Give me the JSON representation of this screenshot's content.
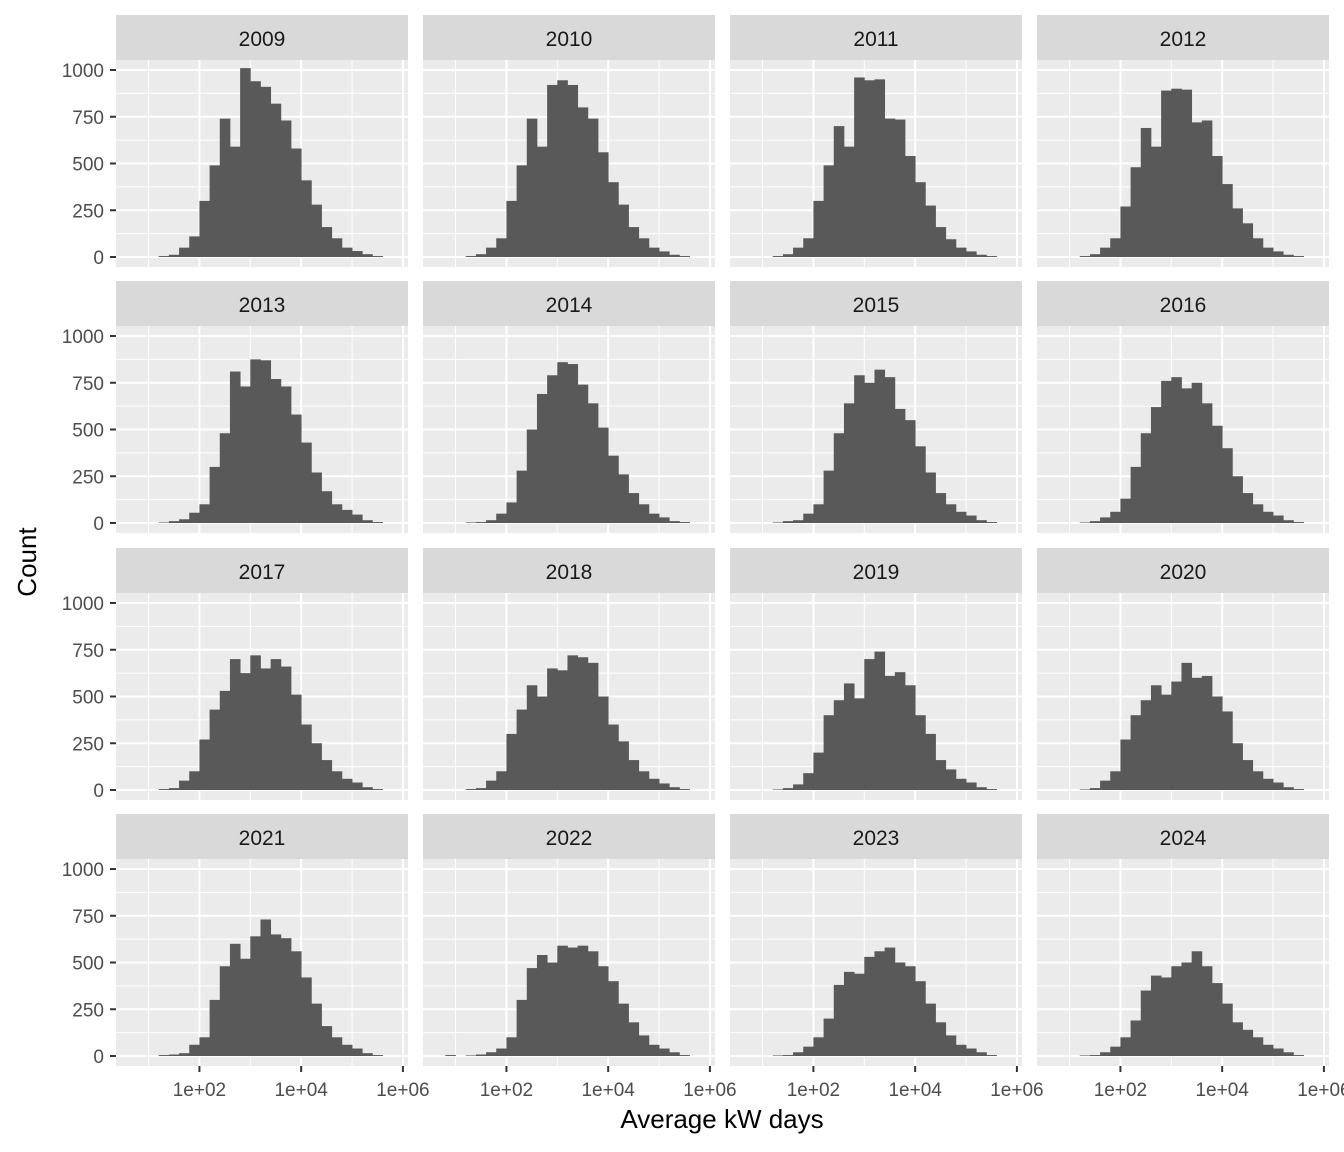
{
  "chart_data": {
    "type": "bar",
    "subtype": "faceted-histogram",
    "title": "",
    "xlabel": "Average kW days",
    "ylabel": "Count",
    "x_scale": "log10",
    "x_ticks": [
      "1e+02",
      "1e+04",
      "1e+06"
    ],
    "y_ticks": [
      "0",
      "250",
      "500",
      "750",
      "1000"
    ],
    "ylim": [
      0,
      1000
    ],
    "grid": true,
    "colors": {
      "bar": "#595959",
      "panel": "#ebebeb",
      "strip": "#d9d9d9",
      "grid": "#ffffff"
    },
    "bin_log10_start": 0.8,
    "bin_log10_width": 0.2,
    "facets": [
      {
        "label": "2009",
        "counts": [
          0,
          0,
          5,
          12,
          50,
          110,
          300,
          490,
          740,
          590,
          1010,
          940,
          910,
          820,
          730,
          580,
          410,
          280,
          160,
          100,
          50,
          32,
          15,
          5
        ]
      },
      {
        "label": "2010",
        "counts": [
          0,
          0,
          5,
          15,
          50,
          100,
          300,
          490,
          740,
          590,
          920,
          945,
          920,
          800,
          740,
          560,
          400,
          280,
          160,
          100,
          50,
          30,
          12,
          5
        ]
      },
      {
        "label": "2011",
        "counts": [
          0,
          0,
          5,
          15,
          50,
          100,
          300,
          490,
          700,
          590,
          960,
          945,
          950,
          740,
          735,
          540,
          400,
          275,
          160,
          95,
          50,
          30,
          12,
          5
        ]
      },
      {
        "label": "2012",
        "counts": [
          0,
          0,
          5,
          15,
          50,
          100,
          270,
          480,
          690,
          590,
          890,
          900,
          895,
          720,
          730,
          540,
          390,
          260,
          180,
          100,
          50,
          30,
          12,
          5
        ]
      },
      {
        "label": "2013",
        "counts": [
          0,
          0,
          3,
          10,
          20,
          55,
          100,
          300,
          480,
          810,
          730,
          875,
          870,
          770,
          730,
          580,
          430,
          270,
          170,
          100,
          70,
          45,
          15,
          5
        ]
      },
      {
        "label": "2014",
        "counts": [
          0,
          0,
          3,
          5,
          15,
          50,
          110,
          280,
          500,
          690,
          790,
          860,
          850,
          740,
          640,
          510,
          360,
          260,
          160,
          100,
          50,
          30,
          10,
          5
        ]
      },
      {
        "label": "2015",
        "counts": [
          0,
          0,
          3,
          10,
          15,
          50,
          100,
          280,
          480,
          640,
          790,
          750,
          820,
          780,
          610,
          550,
          410,
          270,
          160,
          100,
          60,
          40,
          15,
          5
        ]
      },
      {
        "label": "2016",
        "counts": [
          0,
          0,
          3,
          10,
          30,
          60,
          130,
          300,
          480,
          620,
          760,
          780,
          720,
          750,
          640,
          520,
          400,
          250,
          160,
          100,
          60,
          40,
          15,
          5
        ]
      },
      {
        "label": "2017",
        "counts": [
          0,
          0,
          5,
          10,
          50,
          100,
          270,
          430,
          530,
          700,
          625,
          720,
          650,
          700,
          660,
          510,
          350,
          250,
          160,
          100,
          60,
          40,
          15,
          5
        ]
      },
      {
        "label": "2018",
        "counts": [
          0,
          0,
          5,
          10,
          50,
          100,
          300,
          430,
          560,
          500,
          650,
          640,
          720,
          710,
          680,
          500,
          350,
          260,
          160,
          100,
          60,
          35,
          15,
          5
        ]
      },
      {
        "label": "2019",
        "counts": [
          0,
          0,
          3,
          10,
          30,
          90,
          200,
          400,
          480,
          570,
          490,
          700,
          740,
          610,
          630,
          560,
          400,
          300,
          160,
          110,
          60,
          40,
          15,
          5
        ]
      },
      {
        "label": "2020",
        "counts": [
          0,
          0,
          3,
          10,
          50,
          100,
          270,
          400,
          480,
          560,
          510,
          580,
          680,
          600,
          610,
          500,
          420,
          250,
          160,
          100,
          60,
          40,
          15,
          5
        ]
      },
      {
        "label": "2021",
        "counts": [
          0,
          0,
          5,
          8,
          15,
          60,
          100,
          300,
          480,
          600,
          520,
          640,
          730,
          650,
          630,
          560,
          420,
          280,
          160,
          100,
          60,
          40,
          15,
          5
        ]
      },
      {
        "label": "2022",
        "counts": [
          5,
          0,
          3,
          8,
          20,
          40,
          100,
          300,
          470,
          540,
          500,
          590,
          580,
          590,
          560,
          480,
          400,
          280,
          180,
          110,
          60,
          40,
          20,
          5
        ]
      },
      {
        "label": "2023",
        "counts": [
          0,
          0,
          3,
          5,
          20,
          50,
          100,
          200,
          380,
          450,
          440,
          530,
          560,
          580,
          500,
          480,
          400,
          280,
          180,
          110,
          60,
          40,
          20,
          5
        ]
      },
      {
        "label": "2024",
        "counts": [
          0,
          0,
          3,
          5,
          20,
          50,
          100,
          190,
          350,
          430,
          420,
          480,
          500,
          560,
          480,
          390,
          280,
          180,
          140,
          100,
          60,
          40,
          20,
          5
        ]
      }
    ]
  }
}
